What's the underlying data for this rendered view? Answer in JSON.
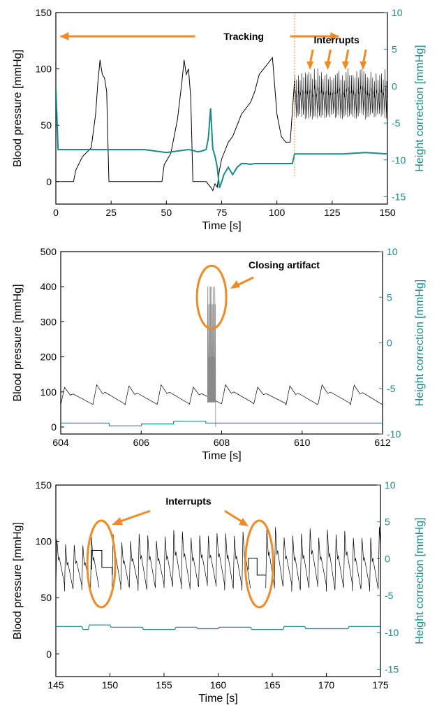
{
  "colors": {
    "bp": "#000000",
    "bp_gray": "#8a8a8a",
    "height": "#1a8a8a",
    "annot": "#f08a24"
  },
  "chart_data": [
    {
      "type": "line",
      "xlabel": "Time [s]",
      "ylabel": "Blood pressure [mmHg]",
      "y2label": "Height correction [mmHg]",
      "xlim": [
        0,
        150
      ],
      "ylim": [
        -20,
        150
      ],
      "y2lim": [
        -16,
        10
      ],
      "xticks": [
        "0",
        "25",
        "50",
        "75",
        "100",
        "125",
        "150"
      ],
      "yticks": [
        "0",
        "50",
        "100",
        "150"
      ],
      "y2ticks": [
        "-15",
        "-10",
        "-5",
        "0",
        "5",
        "10"
      ],
      "annotations": [
        "Tracking",
        "Interrupts"
      ],
      "series": [
        {
          "x": [
            0,
            8,
            9,
            12,
            16,
            18,
            19,
            20,
            21,
            22,
            23,
            24,
            25,
            26,
            48,
            49,
            52,
            55,
            57,
            58,
            59,
            60,
            61,
            62,
            64,
            66,
            68,
            70,
            71,
            72,
            73,
            74,
            75,
            76,
            78,
            80,
            82,
            84,
            86,
            88,
            90,
            92,
            94,
            96,
            98,
            100,
            102,
            104,
            106,
            108,
            110,
            112,
            114,
            116,
            118,
            120,
            122,
            124,
            126,
            128,
            130,
            132,
            134,
            136,
            138,
            140,
            142,
            144,
            146,
            148,
            150
          ],
          "values": [
            0,
            0,
            10,
            22,
            30,
            60,
            88,
            108,
            95,
            92,
            80,
            0,
            0,
            0,
            0,
            15,
            25,
            55,
            88,
            108,
            95,
            100,
            75,
            0,
            0,
            0,
            0,
            -5,
            -8,
            -2,
            -5,
            10,
            20,
            25,
            35,
            40,
            50,
            60,
            65,
            70,
            80,
            95,
            100,
            105,
            110,
            60,
            40,
            35,
            35,
            90,
            85,
            105,
            90,
            80,
            100,
            85,
            95,
            80,
            100,
            75,
            85,
            100,
            90,
            80,
            95,
            85,
            105,
            90,
            80,
            100,
            85
          ],
          "min_envelope": [
            null,
            null,
            null,
            null,
            null,
            null,
            null,
            null,
            null,
            null,
            null,
            null,
            null,
            null,
            null,
            null,
            null,
            null,
            null,
            null,
            null,
            null,
            null,
            null,
            null,
            null,
            null,
            null,
            null,
            null,
            null,
            null,
            null,
            null,
            null,
            null,
            null,
            null,
            null,
            null,
            null,
            null,
            null,
            null,
            null,
            null,
            null,
            null,
            null,
            60,
            50,
            55,
            50,
            55,
            58,
            50,
            55,
            58,
            52,
            56,
            54,
            57,
            52,
            55,
            56,
            53,
            55,
            57,
            52,
            55,
            56
          ]
        },
        {
          "x": [
            0,
            1,
            2,
            5,
            10,
            20,
            30,
            40,
            45,
            50,
            55,
            60,
            62,
            64,
            66,
            68,
            69,
            70,
            71,
            72,
            73,
            74,
            75,
            76,
            77,
            78,
            80,
            82,
            84,
            86,
            88,
            90,
            95,
            100,
            105,
            107,
            108,
            109,
            110,
            120,
            130,
            140,
            150
          ],
          "values": [
            0,
            -8.6,
            -8.6,
            -8.6,
            -8.6,
            -8.6,
            -8.6,
            -8.6,
            -8.8,
            -9,
            -8.8,
            -8.6,
            -8.7,
            -8.9,
            -8.8,
            -8.6,
            -7,
            -3,
            -8.5,
            -9.5,
            -11,
            -13.8,
            -13,
            -12,
            -11.5,
            -11,
            -12,
            -11,
            -10.5,
            -10.5,
            -10.6,
            -10.5,
            -10.5,
            -10.5,
            -10.5,
            -10.5,
            -9.2,
            -9.2,
            -9.2,
            -9.2,
            -9.2,
            -9,
            -9.2
          ]
        }
      ]
    },
    {
      "type": "line",
      "xlabel": "Time [s]",
      "ylabel": "Blood pressure [mmHg]",
      "y2label": "Height correction [mmHg]",
      "xlim": [
        604,
        612
      ],
      "ylim": [
        -20,
        500
      ],
      "y2lim": [
        -10,
        10
      ],
      "xticks": [
        "604",
        "606",
        "608",
        "610",
        "612"
      ],
      "yticks": [
        "0",
        "100",
        "200",
        "300",
        "400",
        "500"
      ],
      "y2ticks": [
        "-10",
        "-5",
        "0",
        "5",
        "10"
      ],
      "annotations": [
        "Closing artifact"
      ],
      "series": [
        {
          "period_s": 0.8,
          "start": 604.2,
          "peak": 115,
          "trough": 65,
          "artifact_x": [
            607.65,
            607.85
          ],
          "artifact_max": 400
        },
        {
          "x": [
            604,
            605.2,
            605.21,
            606.0,
            606.01,
            606.8,
            606.81,
            607.6,
            607.61,
            612
          ],
          "values": [
            -8.8,
            -8.8,
            -9.1,
            -9.1,
            -8.9,
            -8.9,
            -8.6,
            -8.6,
            -8.8,
            -8.8
          ]
        }
      ]
    },
    {
      "type": "line",
      "xlabel": "Time [s]",
      "ylabel": "Blood pressure [mmHg]",
      "y2label": "Height correction [mmHg]",
      "xlim": [
        145,
        175
      ],
      "ylim": [
        -20,
        150
      ],
      "y2lim": [
        -16,
        10
      ],
      "xticks": [
        "145",
        "150",
        "155",
        "160",
        "165",
        "170",
        "175"
      ],
      "yticks": [
        "0",
        "50",
        "100",
        "150"
      ],
      "y2ticks": [
        "-15",
        "-10",
        "-5",
        "0",
        "5",
        "10"
      ],
      "annotations": [
        "Interrupts"
      ],
      "series": [
        {
          "period_s": 0.8,
          "start": 145.0,
          "peak": 100,
          "trough": 58,
          "interrupts": [
            [
              148.3,
              150.2,
              92
            ],
            [
              162.8,
              164.4,
              85
            ]
          ]
        },
        {
          "x": [
            145,
            147.4,
            147.5,
            148,
            148.1,
            150,
            150.1,
            153,
            153.1,
            156,
            156.1,
            158,
            158.1,
            160,
            160.1,
            163,
            163.1,
            166,
            166.1,
            168,
            168.1,
            172,
            172.1,
            175
          ],
          "values": [
            -9.2,
            -9.2,
            -9.6,
            -9.6,
            -9.0,
            -9.0,
            -9.3,
            -9.3,
            -9.6,
            -9.6,
            -9.3,
            -9.3,
            -9.5,
            -9.5,
            -9.3,
            -9.3,
            -9.6,
            -9.6,
            -9.2,
            -9.2,
            -9.5,
            -9.5,
            -9.2,
            -9.2
          ]
        }
      ]
    }
  ]
}
